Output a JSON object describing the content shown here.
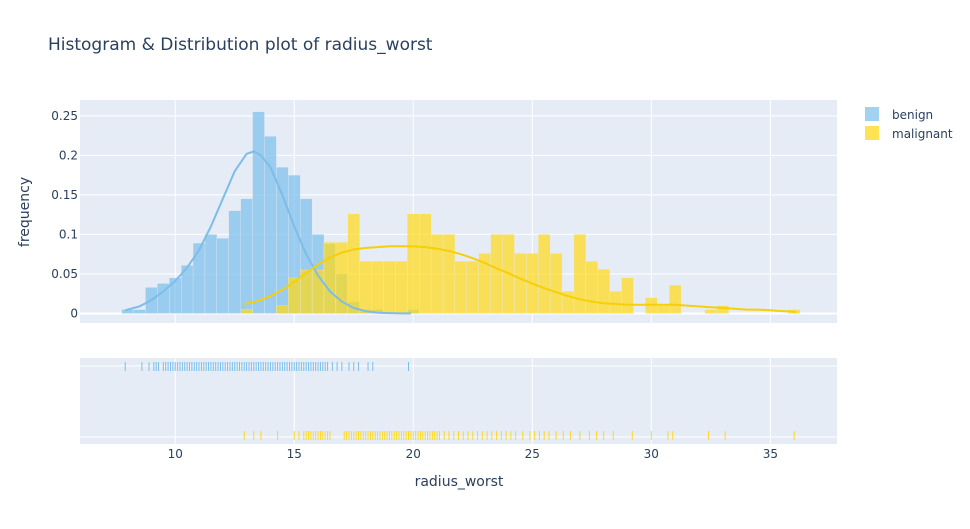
{
  "chart_data": {
    "type": "histogram-distplot",
    "title": "Histogram & Distribution plot of radius_worst",
    "xlabel": "radius_worst",
    "ylabel": "frequency",
    "xlim": [
      6.0,
      37.8
    ],
    "ylim": [
      -0.012,
      0.27
    ],
    "x_ticks": [
      10,
      15,
      20,
      25,
      30,
      35
    ],
    "y_ticks": [
      0,
      0.05,
      0.1,
      0.15,
      0.2,
      0.25
    ],
    "y_tick_labels": [
      "0",
      "0.05",
      "0.1",
      "0.15",
      "0.2",
      "0.25"
    ],
    "legend": {
      "position": "top-right",
      "items": [
        "benign",
        "malignant"
      ]
    },
    "bin_width": 0.5,
    "series": [
      {
        "name": "benign",
        "color": "#7bbfec",
        "kde_color": "#7dbde8",
        "histogram": {
          "bin_start": [
            7.75,
            8.25,
            8.75,
            9.25,
            9.75,
            10.25,
            10.75,
            11.25,
            11.75,
            12.25,
            12.75,
            13.25,
            13.75,
            14.25,
            14.75,
            15.25,
            15.75,
            16.25,
            16.75,
            17.25,
            17.75,
            18.25,
            19.75
          ],
          "freq": [
            0.005,
            0.005,
            0.033,
            0.038,
            0.045,
            0.061,
            0.089,
            0.1,
            0.095,
            0.13,
            0.145,
            0.255,
            0.224,
            0.185,
            0.175,
            0.145,
            0.1,
            0.088,
            0.05,
            0.015,
            0.005,
            0.005,
            0.005
          ]
        },
        "kde": {
          "x": [
            7.9,
            8.5,
            9,
            9.5,
            10,
            10.5,
            11,
            11.5,
            12,
            12.5,
            13,
            13.3,
            13.6,
            14,
            14.5,
            15,
            15.5,
            16,
            16.5,
            17,
            17.5,
            18,
            18.5,
            19,
            19.5,
            19.9
          ],
          "y": [
            0.004,
            0.009,
            0.017,
            0.028,
            0.041,
            0.058,
            0.08,
            0.11,
            0.145,
            0.18,
            0.202,
            0.205,
            0.2,
            0.185,
            0.15,
            0.11,
            0.075,
            0.048,
            0.028,
            0.015,
            0.007,
            0.003,
            0.001,
            0.0005,
            0.0002,
            0.0001
          ]
        },
        "rug_x": [
          7.9,
          8.6,
          8.9,
          9.1,
          9.2,
          9.3,
          9.5,
          9.6,
          9.7,
          9.8,
          9.9,
          10.0,
          10.1,
          10.2,
          10.3,
          10.4,
          10.5,
          10.6,
          10.7,
          10.8,
          10.9,
          11.0,
          11.1,
          11.2,
          11.3,
          11.4,
          11.5,
          11.6,
          11.7,
          11.8,
          11.9,
          12.0,
          12.1,
          12.2,
          12.3,
          12.4,
          12.5,
          12.6,
          12.7,
          12.8,
          12.9,
          13.0,
          13.1,
          13.2,
          13.3,
          13.4,
          13.5,
          13.6,
          13.7,
          13.8,
          13.9,
          14.0,
          14.1,
          14.2,
          14.3,
          14.4,
          14.5,
          14.6,
          14.7,
          14.8,
          14.9,
          15.0,
          15.1,
          15.2,
          15.3,
          15.4,
          15.5,
          15.6,
          15.7,
          15.8,
          15.9,
          16.0,
          16.1,
          16.2,
          16.3,
          16.4,
          16.6,
          16.8,
          17.0,
          17.3,
          17.5,
          17.7,
          18.1,
          18.3,
          19.8
        ]
      },
      {
        "name": "malignant",
        "color": "#ffd919",
        "kde_color": "#f5cf0a",
        "histogram": {
          "bin_start": [
            12.75,
            14.25,
            14.75,
            15.25,
            15.75,
            16.25,
            16.75,
            17.25,
            17.75,
            18.25,
            18.75,
            19.25,
            19.75,
            20.25,
            20.75,
            21.25,
            21.75,
            22.25,
            22.75,
            23.25,
            23.75,
            24.25,
            24.75,
            25.25,
            25.75,
            26.25,
            26.75,
            27.25,
            27.75,
            28.25,
            28.75,
            29.75,
            30.25,
            30.75,
            32.25,
            32.75,
            35.75
          ],
          "freq": [
            0.005,
            0.01,
            0.045,
            0.055,
            0.055,
            0.09,
            0.09,
            0.126,
            0.066,
            0.066,
            0.066,
            0.066,
            0.126,
            0.126,
            0.1,
            0.1,
            0.066,
            0.066,
            0.076,
            0.1,
            0.1,
            0.076,
            0.076,
            0.1,
            0.076,
            0.028,
            0.1,
            0.066,
            0.056,
            0.028,
            0.045,
            0.02,
            0.01,
            0.036,
            0.005,
            0.01,
            0.005
          ]
        },
        "kde": {
          "x": [
            12.9,
            13.5,
            14,
            14.5,
            15,
            15.5,
            16,
            16.5,
            17,
            17.5,
            18,
            18.5,
            19,
            19.5,
            20,
            20.5,
            21,
            21.5,
            22,
            22.5,
            23,
            23.5,
            24,
            24.5,
            25,
            25.5,
            26,
            26.5,
            27,
            27.5,
            28,
            28.5,
            29,
            29.5,
            30,
            30.5,
            31,
            31.5,
            32,
            32.5,
            33,
            33.5,
            34,
            34.5,
            35,
            35.5,
            36.1
          ],
          "y": [
            0.012,
            0.016,
            0.022,
            0.03,
            0.04,
            0.051,
            0.062,
            0.071,
            0.077,
            0.081,
            0.083,
            0.084,
            0.085,
            0.085,
            0.085,
            0.084,
            0.082,
            0.079,
            0.075,
            0.07,
            0.064,
            0.057,
            0.051,
            0.044,
            0.038,
            0.032,
            0.027,
            0.022,
            0.018,
            0.015,
            0.013,
            0.012,
            0.011,
            0.011,
            0.011,
            0.011,
            0.011,
            0.01,
            0.009,
            0.008,
            0.007,
            0.006,
            0.005,
            0.005,
            0.004,
            0.003,
            0.002
          ]
        },
        "rug_x": [
          12.9,
          13.3,
          13.6,
          14.3,
          15.0,
          15.2,
          15.4,
          15.5,
          15.6,
          15.7,
          15.8,
          15.9,
          16.0,
          16.1,
          16.2,
          16.3,
          16.4,
          16.5,
          17.1,
          17.2,
          17.3,
          17.4,
          17.5,
          17.6,
          17.7,
          17.8,
          17.9,
          18.0,
          18.1,
          18.2,
          18.3,
          18.4,
          18.5,
          18.6,
          18.7,
          18.8,
          18.9,
          19.0,
          19.1,
          19.2,
          19.3,
          19.4,
          19.5,
          19.6,
          19.7,
          19.8,
          19.9,
          20.0,
          20.1,
          20.2,
          20.3,
          20.4,
          20.5,
          20.6,
          20.7,
          20.8,
          20.9,
          21.0,
          21.1,
          21.3,
          21.5,
          21.7,
          21.9,
          22.1,
          22.3,
          22.5,
          22.7,
          22.9,
          23.1,
          23.3,
          23.5,
          23.7,
          23.9,
          24.1,
          24.3,
          24.6,
          24.9,
          25.1,
          25.3,
          25.5,
          25.7,
          26.0,
          26.3,
          26.6,
          27.0,
          27.4,
          27.7,
          28.0,
          28.4,
          29.2,
          30.0,
          30.7,
          30.9,
          32.4,
          33.1,
          36.0
        ]
      }
    ]
  }
}
